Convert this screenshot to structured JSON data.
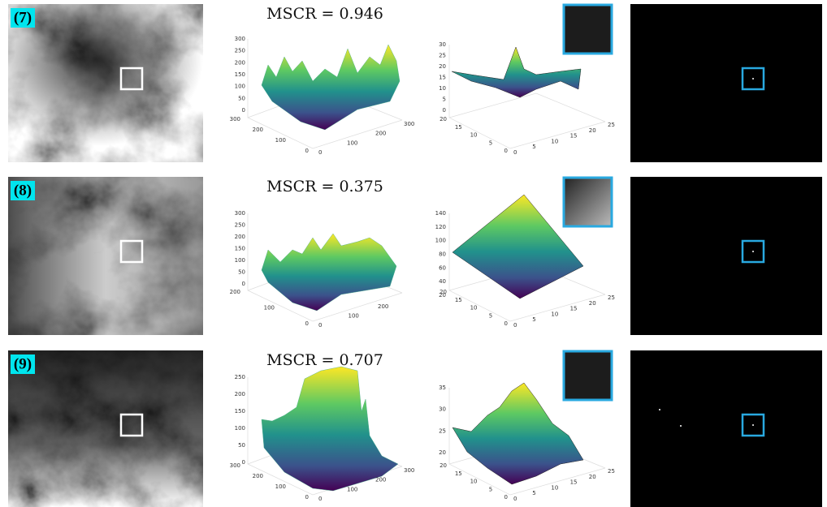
{
  "rows": [
    {
      "label": "(7)",
      "mscr": "MSCR = 0.946",
      "surface": {
        "zticks": [
          300,
          250,
          200,
          150,
          100,
          50,
          0
        ],
        "yticks": [
          300,
          200,
          100,
          0
        ],
        "xticks": [
          0,
          100,
          200,
          300
        ]
      },
      "patch": {
        "zticks": [
          30,
          25,
          20,
          15,
          10,
          5,
          0
        ],
        "yticks": [
          20,
          15,
          10,
          5,
          0
        ],
        "xticks": [
          0,
          5,
          10,
          15,
          20,
          25
        ]
      }
    },
    {
      "label": "(8)",
      "mscr": "MSCR = 0.375",
      "surface": {
        "zticks": [
          300,
          250,
          200,
          150,
          100,
          50,
          0
        ],
        "yticks": [
          200,
          100,
          0
        ],
        "xticks": [
          0,
          100,
          200
        ]
      },
      "patch": {
        "zticks": [
          140,
          120,
          100,
          80,
          60,
          40,
          20
        ],
        "yticks": [
          20,
          15,
          10,
          5,
          0
        ],
        "xticks": [
          0,
          5,
          10,
          15,
          20,
          25
        ]
      }
    },
    {
      "label": "(9)",
      "mscr": "MSCR = 0.707",
      "surface": {
        "zticks": [
          250,
          200,
          150,
          100,
          50,
          0
        ],
        "yticks": [
          300,
          200,
          100,
          0
        ],
        "xticks": [
          0,
          100,
          200,
          300
        ]
      },
      "patch": {
        "zticks": [
          35,
          30,
          25,
          20
        ],
        "yticks": [
          20,
          15,
          10,
          5,
          0
        ],
        "xticks": [
          0,
          5,
          10,
          15,
          20,
          25
        ]
      }
    }
  ]
}
